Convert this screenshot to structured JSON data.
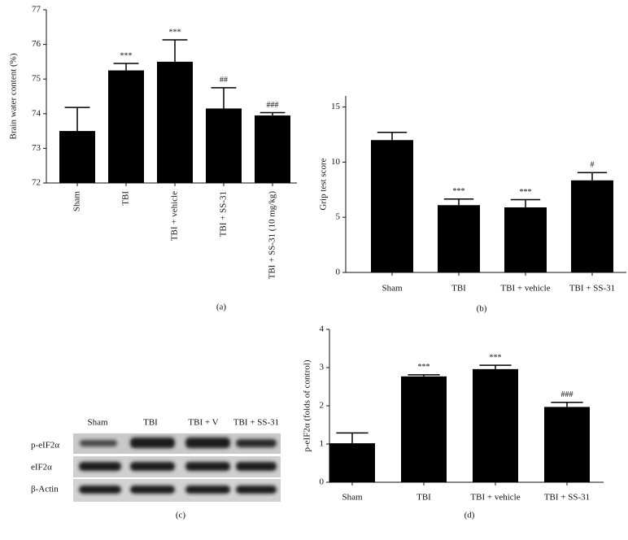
{
  "chart_data": [
    {
      "type": "bar",
      "label": "(a)",
      "ylabel": "Brain water content (%)",
      "categories": [
        "Sham",
        "TBI",
        "TBI + vehicle",
        "TBI + SS-31",
        "TBI + SS-31 (10 mg/kg)"
      ],
      "values": [
        73.5,
        75.25,
        75.5,
        74.15,
        73.95
      ],
      "errors": [
        0.68,
        0.2,
        0.63,
        0.6,
        0.08
      ],
      "annotations": [
        null,
        "***",
        "***",
        "##",
        "###"
      ],
      "color": "#000000",
      "ylim": [
        72,
        77
      ],
      "yticks": [
        72,
        73,
        74,
        75,
        76,
        77
      ]
    },
    {
      "type": "bar",
      "label": "(b)",
      "ylabel": "Grip test score",
      "categories": [
        "Sham",
        "TBI",
        "TBI + vehicle",
        "TBI + SS-31"
      ],
      "values": [
        12,
        6.1,
        5.9,
        8.35
      ],
      "errors": [
        0.7,
        0.55,
        0.7,
        0.7
      ],
      "annotations": [
        null,
        "***",
        "***",
        "#"
      ],
      "color": "#000000",
      "ylim": [
        0,
        16
      ],
      "yticks": [
        0,
        5,
        10,
        15
      ]
    },
    {
      "type": "bar",
      "label": "(d)",
      "ylabel": "p-eIF2α (folds of control)",
      "categories": [
        "Sham",
        "TBI",
        "TBI + vehicle",
        "TBI + SS-31"
      ],
      "values": [
        1.02,
        2.77,
        2.96,
        1.97
      ],
      "errors": [
        0.27,
        0.04,
        0.1,
        0.12
      ],
      "annotations": [
        null,
        "***",
        "***",
        "###"
      ],
      "color": "#000000",
      "ylim": [
        0,
        4
      ],
      "yticks": [
        0,
        1,
        2,
        3,
        4
      ]
    }
  ],
  "blot": {
    "label": "(c)",
    "columns": [
      "Sham",
      "TBI",
      "TBI + V",
      "TBI + SS-31"
    ],
    "rows": [
      "p-eIF2α",
      "eIF2α",
      "β-Actin"
    ]
  }
}
